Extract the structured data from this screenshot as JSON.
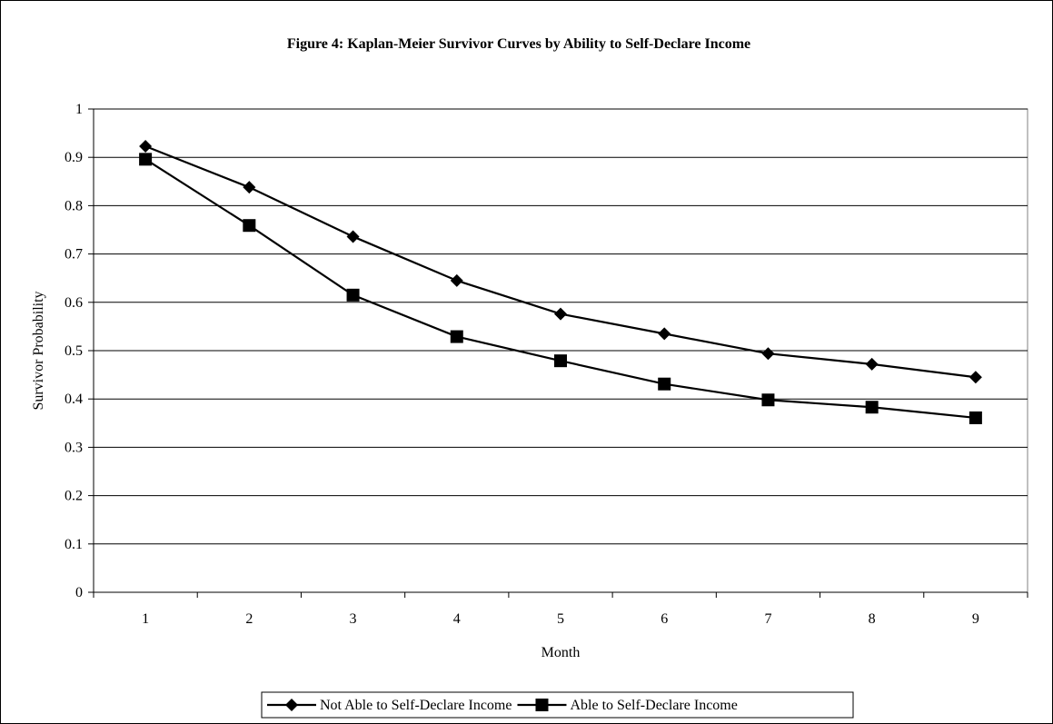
{
  "chart_data": {
    "type": "line",
    "title": "Figure 4: Kaplan-Meier Survivor Curves by Ability to Self-Declare Income",
    "xlabel": "Month",
    "ylabel": "Survivor Probability",
    "categories": [
      "1",
      "2",
      "3",
      "4",
      "5",
      "6",
      "7",
      "8",
      "9"
    ],
    "ylim": [
      0,
      1
    ],
    "yticks": [
      "0",
      "0.1",
      "0.2",
      "0.3",
      "0.4",
      "0.5",
      "0.6",
      "0.7",
      "0.8",
      "0.9",
      "1"
    ],
    "grid": "horizontal",
    "legend_position": "bottom",
    "series": [
      {
        "name": "Not Able to Self-Declare Income",
        "marker": "diamond",
        "color": "#000000",
        "values": [
          0.923,
          0.838,
          0.736,
          0.645,
          0.576,
          0.535,
          0.494,
          0.472,
          0.445
        ]
      },
      {
        "name": "Able to Self-Declare Income",
        "marker": "square",
        "color": "#000000",
        "values": [
          0.896,
          0.759,
          0.615,
          0.529,
          0.479,
          0.431,
          0.398,
          0.383,
          0.361
        ]
      }
    ]
  }
}
